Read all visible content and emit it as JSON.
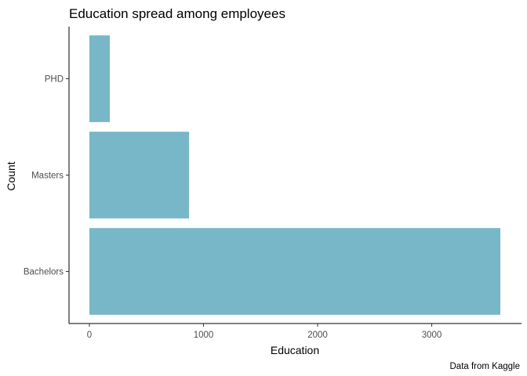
{
  "chart_data": {
    "type": "bar",
    "orientation": "horizontal",
    "title": "Education spread among employees",
    "xlabel": "Education",
    "ylabel": "Count",
    "caption": "Data from Kaggle",
    "categories": [
      "Bachelors",
      "Masters",
      "PHD"
    ],
    "values": [
      3601,
      873,
      179
    ],
    "xlim": [
      0,
      3601
    ],
    "xticks": [
      0,
      1000,
      2000,
      3000
    ],
    "xtick_labels": [
      "0",
      "1000",
      "2000",
      "3000"
    ],
    "grid": false,
    "bar_color": "#78B7C8",
    "axis_color": "#000000"
  }
}
